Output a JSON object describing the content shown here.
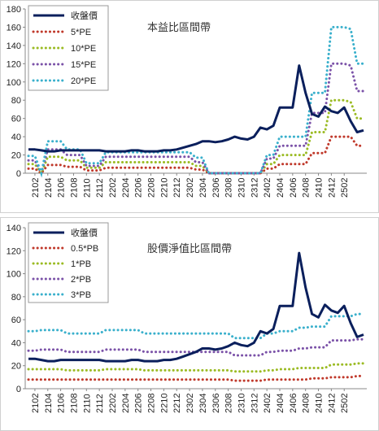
{
  "chart_data": [
    {
      "type": "line",
      "title": "本益比區間帶",
      "ylim": [
        0,
        180
      ],
      "yticks": [
        0,
        20,
        40,
        60,
        80,
        100,
        120,
        140,
        160,
        180
      ],
      "x_tick_labels": [
        "2102",
        "2104",
        "2106",
        "2108",
        "2110",
        "2112",
        "2202",
        "2204",
        "2206",
        "2208",
        "2210",
        "2212",
        "2302",
        "2304",
        "2306",
        "2308",
        "2310",
        "2312",
        "2402",
        "2404",
        "2406",
        "2408",
        "2410",
        "2412",
        "2502"
      ],
      "legend": "top-left",
      "grid": false,
      "series": [
        {
          "name": "收盤價",
          "color": "#0a1f5c",
          "style": "solid",
          "values": [
            26,
            26,
            25,
            24,
            24,
            25,
            25,
            25,
            25,
            25,
            25,
            25,
            24,
            24,
            24,
            24,
            25,
            25,
            24,
            24,
            24,
            25,
            25,
            26,
            28,
            30,
            32,
            35,
            35,
            34,
            35,
            37,
            40,
            38,
            37,
            40,
            50,
            48,
            52,
            72,
            72,
            72,
            118,
            88,
            65,
            62,
            73,
            68,
            66,
            72,
            57,
            45,
            47
          ]
        },
        {
          "name": "5*PE",
          "color": "#c0392b",
          "style": "dotted",
          "values": [
            5,
            5,
            0,
            9,
            9,
            9,
            7,
            7,
            7,
            3,
            3,
            3,
            6,
            6,
            6,
            6,
            6,
            6,
            6,
            6,
            6,
            6,
            6,
            6,
            6,
            6,
            4,
            4,
            0,
            0,
            0,
            0,
            0,
            0,
            0,
            0,
            0,
            5,
            5,
            10,
            10,
            10,
            10,
            10,
            22,
            22,
            22,
            40,
            40,
            40,
            40,
            30,
            30
          ]
        },
        {
          "name": "10*PE",
          "color": "#9bbb24",
          "style": "dotted",
          "values": [
            10,
            10,
            0,
            18,
            18,
            18,
            14,
            14,
            14,
            6,
            6,
            6,
            12,
            12,
            12,
            12,
            12,
            12,
            12,
            12,
            12,
            12,
            12,
            12,
            12,
            12,
            8,
            8,
            0,
            0,
            0,
            0,
            0,
            0,
            0,
            0,
            0,
            10,
            10,
            20,
            20,
            20,
            20,
            20,
            45,
            45,
            45,
            80,
            80,
            80,
            78,
            60,
            60
          ]
        },
        {
          "name": "15*PE",
          "color": "#7b52a8",
          "style": "dotted",
          "values": [
            14,
            14,
            0,
            26,
            26,
            26,
            20,
            20,
            20,
            8,
            8,
            8,
            18,
            18,
            18,
            18,
            18,
            18,
            18,
            18,
            18,
            18,
            18,
            18,
            18,
            18,
            12,
            12,
            0,
            0,
            0,
            0,
            0,
            0,
            0,
            0,
            0,
            16,
            16,
            30,
            30,
            30,
            30,
            30,
            66,
            66,
            66,
            120,
            120,
            120,
            118,
            90,
            90
          ]
        },
        {
          "name": "20*PE",
          "color": "#3ab0cc",
          "style": "dotted",
          "values": [
            19,
            19,
            0,
            35,
            35,
            35,
            26,
            26,
            26,
            11,
            11,
            11,
            23,
            23,
            23,
            23,
            23,
            23,
            23,
            23,
            23,
            23,
            23,
            23,
            23,
            23,
            17,
            17,
            0,
            0,
            0,
            0,
            0,
            0,
            0,
            0,
            0,
            20,
            20,
            40,
            40,
            40,
            40,
            40,
            88,
            88,
            88,
            160,
            160,
            160,
            158,
            120,
            120
          ]
        }
      ]
    },
    {
      "type": "line",
      "title": "股價淨值比區間帶",
      "ylim": [
        0,
        140
      ],
      "yticks": [
        0,
        20,
        40,
        60,
        80,
        100,
        120,
        140
      ],
      "x_tick_labels": [
        "2102",
        "2104",
        "2106",
        "2108",
        "2110",
        "2112",
        "2202",
        "2204",
        "2206",
        "2208",
        "2210",
        "2212",
        "2302",
        "2304",
        "2306",
        "2308",
        "2310",
        "2312",
        "2402",
        "2404",
        "2406",
        "2408",
        "2410",
        "2412",
        "2502"
      ],
      "legend": "top-left",
      "grid": false,
      "series": [
        {
          "name": "收盤價",
          "color": "#0a1f5c",
          "style": "solid",
          "values": [
            26,
            26,
            25,
            24,
            24,
            25,
            25,
            25,
            25,
            25,
            25,
            25,
            24,
            24,
            24,
            24,
            25,
            25,
            24,
            24,
            24,
            25,
            25,
            26,
            28,
            30,
            32,
            35,
            35,
            34,
            35,
            37,
            40,
            38,
            37,
            40,
            50,
            48,
            52,
            72,
            72,
            72,
            118,
            88,
            65,
            62,
            73,
            68,
            66,
            72,
            57,
            45,
            47
          ]
        },
        {
          "name": "0.5*PB",
          "color": "#c0392b",
          "style": "dotted",
          "values": [
            8,
            8,
            8,
            8,
            8,
            8,
            8,
            8,
            8,
            8,
            8,
            8,
            8,
            8,
            8,
            8,
            8,
            8,
            8,
            8,
            8,
            8,
            8,
            8,
            8,
            8,
            8,
            8,
            8,
            8,
            8,
            8,
            7,
            7,
            7,
            7,
            7,
            8,
            8,
            8,
            8,
            8,
            8,
            8,
            9,
            9,
            9,
            10,
            10,
            10,
            10,
            11,
            11
          ]
        },
        {
          "name": "1*PB",
          "color": "#9bbb24",
          "style": "dotted",
          "values": [
            17,
            17,
            17,
            17,
            17,
            17,
            16,
            16,
            16,
            16,
            16,
            16,
            17,
            17,
            17,
            17,
            17,
            17,
            16,
            16,
            16,
            16,
            16,
            16,
            16,
            16,
            16,
            16,
            16,
            16,
            16,
            16,
            15,
            15,
            15,
            15,
            15,
            16,
            16,
            17,
            17,
            17,
            18,
            18,
            18,
            18,
            18,
            21,
            21,
            21,
            21,
            22,
            22
          ]
        },
        {
          "name": "2*PB",
          "color": "#7b52a8",
          "style": "dotted",
          "values": [
            33,
            33,
            34,
            34,
            34,
            34,
            32,
            32,
            32,
            32,
            32,
            32,
            34,
            34,
            34,
            34,
            34,
            34,
            32,
            32,
            32,
            32,
            32,
            32,
            32,
            32,
            32,
            32,
            32,
            32,
            32,
            32,
            29,
            29,
            29,
            29,
            29,
            32,
            32,
            33,
            33,
            33,
            35,
            35,
            36,
            36,
            36,
            42,
            42,
            42,
            42,
            43,
            43
          ]
        },
        {
          "name": "3*PB",
          "color": "#3ab0cc",
          "style": "dotted",
          "values": [
            50,
            50,
            51,
            51,
            51,
            51,
            48,
            48,
            48,
            48,
            48,
            48,
            51,
            51,
            51,
            51,
            51,
            51,
            48,
            48,
            48,
            48,
            48,
            48,
            48,
            48,
            48,
            48,
            48,
            48,
            48,
            48,
            44,
            44,
            44,
            44,
            44,
            48,
            48,
            50,
            50,
            50,
            53,
            53,
            54,
            54,
            54,
            63,
            63,
            63,
            63,
            65,
            65
          ]
        }
      ]
    }
  ]
}
